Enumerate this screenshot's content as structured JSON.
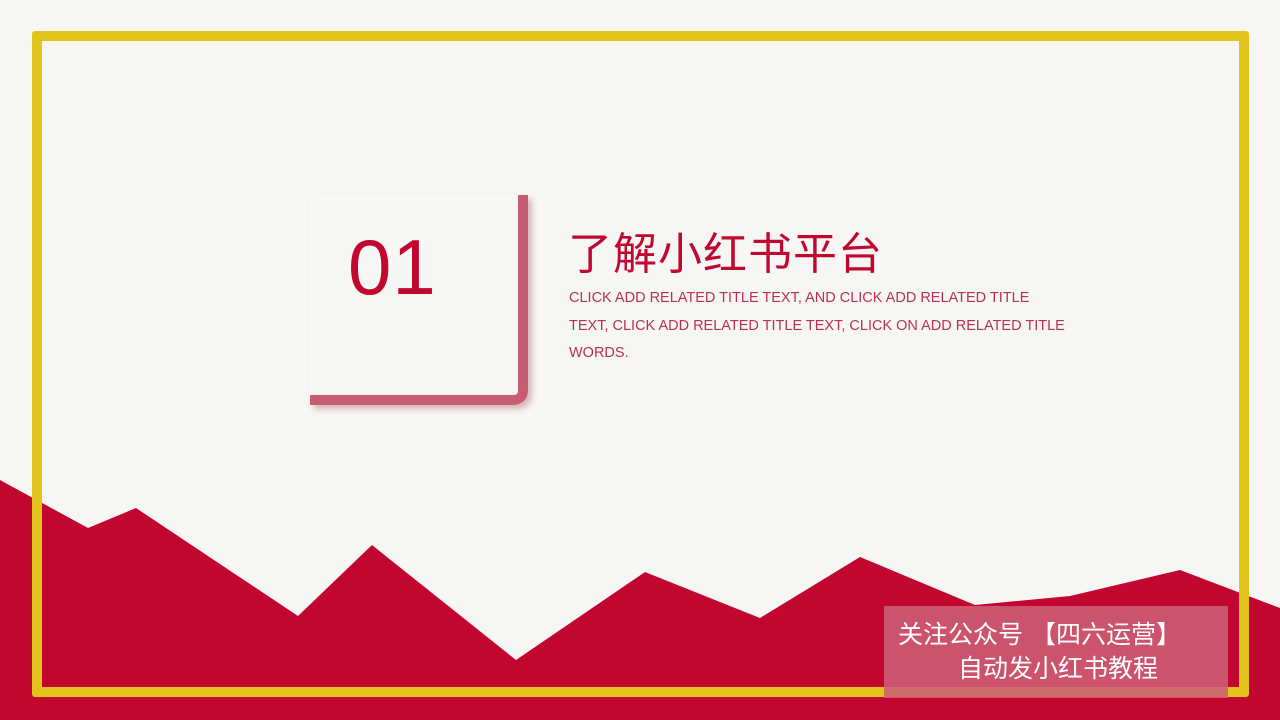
{
  "colors": {
    "background": "#f6f6f4",
    "accent_red": "#c1062f",
    "frame_yellow": "#e2c41c",
    "corner_pink": "#c75d73"
  },
  "slide": {
    "number": "01",
    "title": "了解小红书平台",
    "subtitle": "CLICK ADD RELATED TITLE TEXT, AND CLICK ADD RELATED TITLE TEXT, CLICK ADD RELATED TITLE TEXT, CLICK ON ADD RELATED TITLE WORDS."
  },
  "watermark": {
    "line1": "关注公众号 【四六运营】",
    "line2": "自动发小红书教程"
  }
}
